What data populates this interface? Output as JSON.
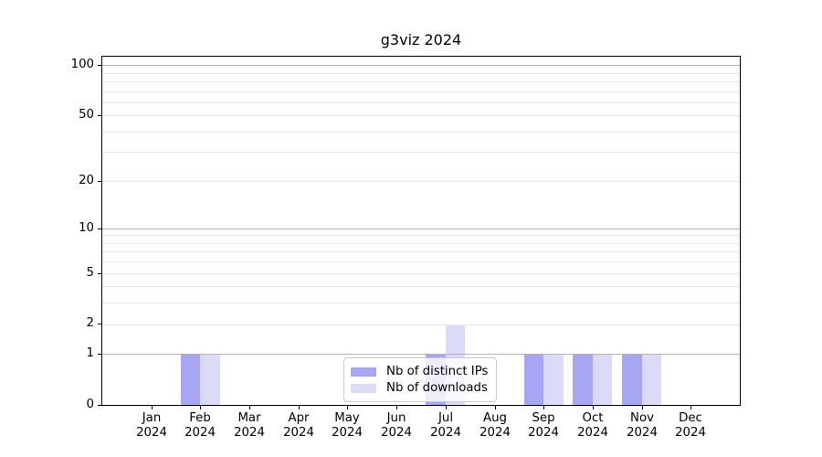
{
  "chart_data": {
    "type": "bar",
    "title": "g3viz 2024",
    "categories": [
      "Jan",
      "Feb",
      "Mar",
      "Apr",
      "May",
      "Jun",
      "Jul",
      "Aug",
      "Sep",
      "Oct",
      "Nov",
      "Dec"
    ],
    "year_label": "2024",
    "series": [
      {
        "name": "Nb of distinct IPs",
        "color": "#a6a6f2",
        "values": [
          0,
          1,
          0,
          0,
          0,
          0,
          1,
          0,
          1,
          1,
          1,
          0
        ]
      },
      {
        "name": "Nb of downloads",
        "color": "#dbdbf8",
        "values": [
          0,
          1,
          0,
          0,
          0,
          0,
          2,
          0,
          1,
          1,
          1,
          0
        ]
      }
    ],
    "yscale": "log1p",
    "yticks": [
      0,
      1,
      2,
      5,
      10,
      20,
      50,
      100
    ],
    "decade_gridlines": [
      1,
      10,
      100
    ],
    "minor_gridlines": [
      2,
      3,
      4,
      5,
      6,
      7,
      8,
      9,
      20,
      30,
      40,
      50,
      60,
      70,
      80,
      90,
      100
    ],
    "ylim_top_value": 112,
    "xlabel": "",
    "ylabel": "",
    "legend": {
      "position": "lower center",
      "entries": [
        "Nb of distinct IPs",
        "Nb of downloads"
      ]
    },
    "colors": {
      "decade_grid": "#b3b3b3",
      "minor_grid": "#e8e8e8",
      "axis": "#000000",
      "text": "#000000",
      "background": "#ffffff"
    }
  }
}
